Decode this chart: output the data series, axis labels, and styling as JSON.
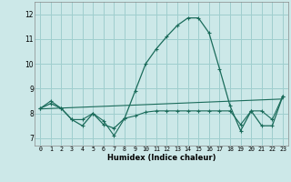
{
  "xlabel": "Humidex (Indice chaleur)",
  "bg_color": "#cce8e8",
  "grid_color": "#9fcece",
  "line_color": "#1a6b5a",
  "xlim": [
    -0.5,
    23.5
  ],
  "ylim": [
    6.7,
    12.5
  ],
  "yticks": [
    7,
    8,
    9,
    10,
    11,
    12
  ],
  "xticks": [
    0,
    1,
    2,
    3,
    4,
    5,
    6,
    7,
    8,
    9,
    10,
    11,
    12,
    13,
    14,
    15,
    16,
    17,
    18,
    19,
    20,
    21,
    22,
    23
  ],
  "curve_humidex_x": [
    0,
    1,
    2,
    3,
    4,
    5,
    6,
    7,
    8,
    9,
    10,
    11,
    12,
    13,
    14,
    15,
    16,
    17,
    18,
    19,
    20,
    21,
    22,
    23
  ],
  "curve_humidex_y": [
    8.2,
    8.4,
    8.2,
    7.75,
    7.5,
    8.0,
    7.55,
    7.4,
    7.8,
    8.9,
    10.0,
    10.6,
    11.1,
    11.55,
    11.85,
    11.85,
    11.25,
    9.8,
    8.3,
    7.3,
    8.1,
    7.5,
    7.5,
    8.7
  ],
  "curve_flat_x": [
    0,
    1,
    2,
    3,
    4,
    5,
    6,
    7,
    8,
    9,
    10,
    11,
    12,
    13,
    14,
    15,
    16,
    17,
    18,
    19,
    20,
    21,
    22,
    23
  ],
  "curve_flat_y": [
    8.2,
    8.5,
    8.2,
    7.75,
    7.75,
    8.0,
    7.7,
    7.1,
    7.8,
    7.9,
    8.05,
    8.1,
    8.1,
    8.1,
    8.1,
    8.1,
    8.1,
    8.1,
    8.1,
    7.55,
    8.1,
    8.1,
    7.75,
    8.7
  ],
  "trend_x": [
    0,
    23
  ],
  "trend_y": [
    8.18,
    8.58
  ]
}
